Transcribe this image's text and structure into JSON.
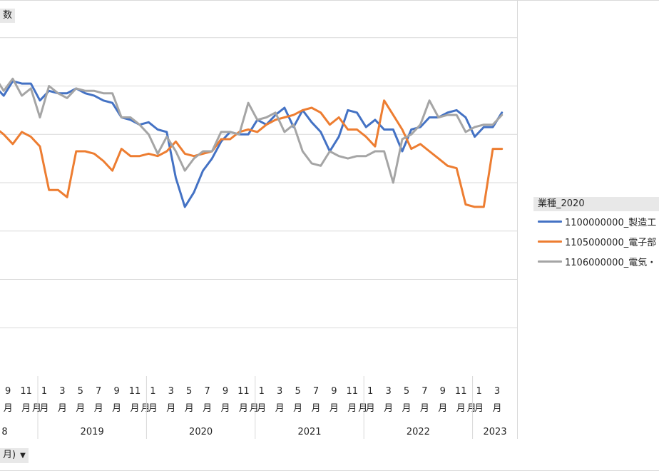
{
  "fields": {
    "top": "数",
    "bottom": "月)",
    "legend_title": "業種_2020"
  },
  "chart_data": {
    "type": "line",
    "x_groups": [
      {
        "label": "8",
        "months": [
          "9",
          "11"
        ]
      },
      {
        "label": "2019",
        "months": [
          "1",
          "3",
          "5",
          "7",
          "9",
          "11"
        ]
      },
      {
        "label": "2020",
        "months": [
          "1",
          "3",
          "5",
          "7",
          "9",
          "11"
        ]
      },
      {
        "label": "2021",
        "months": [
          "1",
          "3",
          "5",
          "7",
          "9",
          "11"
        ]
      },
      {
        "label": "2022",
        "months": [
          "1",
          "3",
          "5",
          "7",
          "9",
          "11"
        ]
      },
      {
        "label": "2023",
        "months": [
          "1",
          "3"
        ]
      }
    ],
    "month_suffix": "月",
    "x": [
      "2018-08",
      "2018-09",
      "2018-10",
      "2018-11",
      "2018-12",
      "2019-01",
      "2019-02",
      "2019-03",
      "2019-04",
      "2019-05",
      "2019-06",
      "2019-07",
      "2019-08",
      "2019-09",
      "2019-10",
      "2019-11",
      "2019-12",
      "2020-01",
      "2020-02",
      "2020-03",
      "2020-04",
      "2020-05",
      "2020-06",
      "2020-07",
      "2020-08",
      "2020-09",
      "2020-10",
      "2020-11",
      "2020-12",
      "2021-01",
      "2021-02",
      "2021-03",
      "2021-04",
      "2021-05",
      "2021-06",
      "2021-07",
      "2021-08",
      "2021-09",
      "2021-10",
      "2021-11",
      "2021-12",
      "2022-01",
      "2022-02",
      "2022-03",
      "2022-04",
      "2022-05",
      "2022-06",
      "2022-07",
      "2022-08",
      "2022-09",
      "2022-10",
      "2022-11",
      "2022-12",
      "2023-01",
      "2023-02",
      "2023-03",
      "2023-04"
    ],
    "ylim": [
      0,
      8
    ],
    "grid": true,
    "legend_position": "right",
    "series": [
      {
        "name": "1100000000_製造工",
        "color": "#4472C4",
        "values": [
          6.0,
          5.8,
          6.1,
          6.05,
          6.05,
          5.7,
          5.9,
          5.85,
          5.85,
          5.95,
          5.85,
          5.8,
          5.7,
          5.65,
          5.35,
          5.3,
          5.2,
          5.25,
          5.1,
          5.05,
          4.1,
          3.5,
          3.8,
          4.25,
          4.5,
          4.85,
          5.05,
          5.0,
          5.0,
          5.3,
          5.2,
          5.4,
          5.55,
          5.15,
          5.5,
          5.25,
          5.05,
          4.65,
          4.95,
          5.5,
          5.45,
          5.15,
          5.3,
          5.1,
          5.1,
          4.65,
          5.1,
          5.15,
          5.35,
          5.35,
          5.45,
          5.5,
          5.35,
          4.95,
          5.15,
          5.15,
          5.45
        ]
      },
      {
        "name": "1105000000_電子部",
        "color": "#ED7D31",
        "values": [
          5.15,
          5.0,
          4.8,
          5.05,
          4.95,
          4.75,
          3.85,
          3.85,
          3.7,
          4.65,
          4.65,
          4.6,
          4.45,
          4.25,
          4.7,
          4.55,
          4.55,
          4.6,
          4.55,
          4.65,
          4.85,
          4.6,
          4.55,
          4.6,
          4.65,
          4.9,
          4.9,
          5.05,
          5.1,
          5.05,
          5.2,
          5.3,
          5.35,
          5.4,
          5.5,
          5.55,
          5.45,
          5.2,
          5.35,
          5.1,
          5.1,
          4.95,
          4.75,
          5.7,
          5.4,
          5.1,
          4.7,
          4.8,
          4.65,
          4.5,
          4.35,
          4.3,
          3.55,
          3.5,
          3.5,
          4.7,
          4.7
        ]
      },
      {
        "name": "1106000000_電気・",
        "color": "#A5A5A5",
        "values": [
          6.2,
          5.9,
          6.15,
          5.8,
          5.95,
          5.35,
          6.0,
          5.85,
          5.75,
          5.95,
          5.9,
          5.9,
          5.85,
          5.85,
          5.35,
          5.35,
          5.2,
          5.0,
          4.6,
          4.95,
          4.65,
          4.25,
          4.5,
          4.65,
          4.65,
          5.05,
          5.05,
          5.0,
          5.65,
          5.3,
          5.35,
          5.45,
          5.05,
          5.2,
          4.65,
          4.4,
          4.35,
          4.65,
          4.55,
          4.5,
          4.55,
          4.55,
          4.65,
          4.65,
          4.0,
          4.9,
          5.0,
          5.2,
          5.7,
          5.35,
          5.4,
          5.4,
          5.05,
          5.15,
          5.2,
          5.2,
          5.4
        ]
      }
    ]
  }
}
